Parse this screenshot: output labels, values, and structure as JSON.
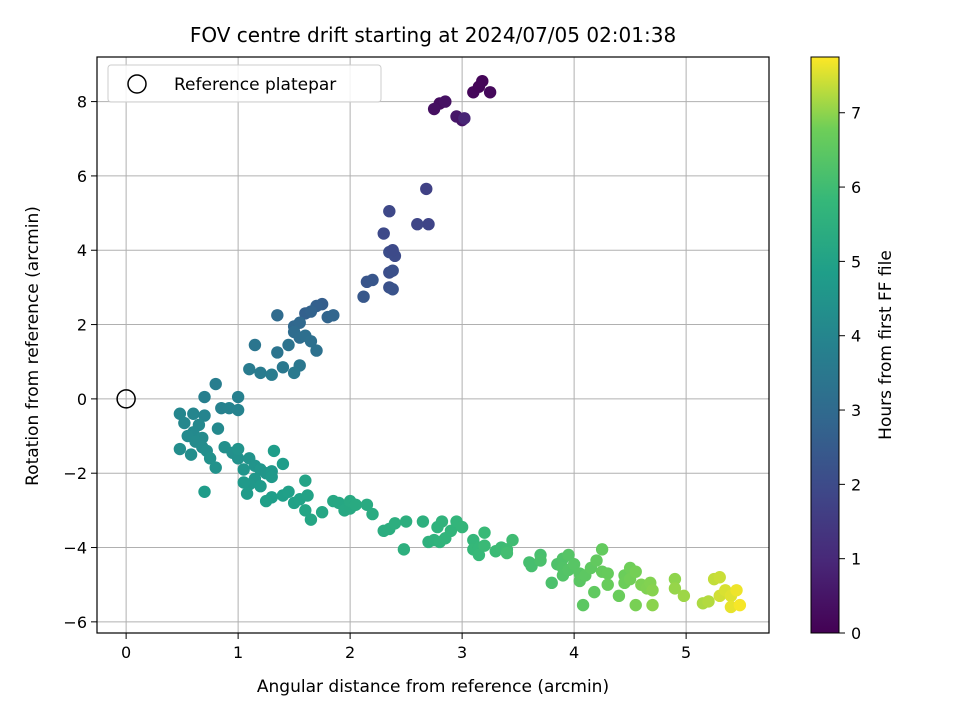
{
  "chart_data": {
    "type": "scatter",
    "title": "FOV centre drift starting at 2024/07/05 02:01:38",
    "xlabel": "Angular distance from reference (arcmin)",
    "ylabel": "Rotation from reference (arcmin)",
    "xlim": [
      -0.26,
      5.74
    ],
    "ylim": [
      -6.3,
      9.2
    ],
    "xticks": [
      0,
      1,
      2,
      3,
      4,
      5
    ],
    "yticks": [
      -6,
      -4,
      -2,
      0,
      2,
      4,
      6,
      8
    ],
    "grid": true,
    "legend": {
      "position": "top-left",
      "entries": [
        {
          "label": "Reference platepar",
          "marker": "open-circle"
        }
      ]
    },
    "reference_point": {
      "x": 0,
      "y": 0
    },
    "colorbar": {
      "label": "Hours from first FF file",
      "colormap": "viridis",
      "range": [
        0,
        7.75
      ],
      "ticks": [
        0,
        1,
        2,
        3,
        4,
        5,
        6,
        7
      ]
    },
    "points": [
      [
        3.18,
        8.55,
        0.1
      ],
      [
        3.1,
        8.25,
        0.15
      ],
      [
        3.25,
        8.25,
        0.2
      ],
      [
        3.15,
        8.4,
        0.12
      ],
      [
        2.8,
        7.95,
        0.3
      ],
      [
        2.75,
        7.8,
        0.35
      ],
      [
        2.85,
        8.0,
        0.4
      ],
      [
        2.95,
        7.6,
        0.55
      ],
      [
        3.0,
        7.5,
        0.5
      ],
      [
        3.02,
        7.55,
        0.9
      ],
      [
        2.68,
        5.65,
        1.7
      ],
      [
        2.7,
        4.7,
        1.8
      ],
      [
        2.6,
        4.7,
        1.85
      ],
      [
        2.35,
        5.05,
        1.9
      ],
      [
        2.3,
        4.45,
        1.95
      ],
      [
        2.4,
        3.85,
        2.0
      ],
      [
        2.35,
        3.95,
        2.05
      ],
      [
        2.38,
        4.0,
        1.98
      ],
      [
        2.35,
        3.4,
        2.1
      ],
      [
        2.38,
        3.45,
        2.15
      ],
      [
        2.35,
        3.0,
        2.2
      ],
      [
        2.38,
        2.95,
        2.25
      ],
      [
        2.15,
        3.15,
        2.3
      ],
      [
        2.2,
        3.2,
        2.35
      ],
      [
        2.12,
        2.75,
        2.4
      ],
      [
        1.75,
        2.55,
        2.6
      ],
      [
        1.7,
        2.5,
        2.65
      ],
      [
        1.6,
        2.3,
        2.7
      ],
      [
        1.65,
        2.35,
        2.75
      ],
      [
        1.8,
        2.2,
        2.8
      ],
      [
        1.85,
        2.25,
        2.85
      ],
      [
        1.5,
        1.95,
        2.9
      ],
      [
        1.55,
        2.05,
        2.95
      ],
      [
        1.35,
        2.25,
        3.0
      ],
      [
        1.5,
        1.8,
        3.05
      ],
      [
        1.55,
        1.65,
        3.1
      ],
      [
        1.6,
        1.7,
        3.15
      ],
      [
        1.65,
        1.55,
        3.2
      ],
      [
        1.7,
        1.3,
        3.25
      ],
      [
        1.45,
        1.45,
        3.3
      ],
      [
        1.35,
        1.25,
        3.35
      ],
      [
        1.15,
        1.45,
        3.4
      ],
      [
        1.55,
        0.9,
        3.45
      ],
      [
        1.4,
        0.85,
        3.5
      ],
      [
        1.5,
        0.7,
        3.55
      ],
      [
        1.1,
        0.8,
        3.6
      ],
      [
        1.2,
        0.7,
        3.62
      ],
      [
        1.3,
        0.65,
        3.65
      ],
      [
        0.8,
        0.4,
        3.7
      ],
      [
        0.7,
        0.05,
        3.75
      ],
      [
        1.0,
        0.05,
        3.8
      ],
      [
        0.85,
        -0.25,
        3.85
      ],
      [
        0.92,
        -0.25,
        3.88
      ],
      [
        1.0,
        -0.3,
        3.9
      ],
      [
        0.7,
        -0.45,
        3.95
      ],
      [
        0.6,
        -0.4,
        3.98
      ],
      [
        0.48,
        -0.4,
        4.0
      ],
      [
        0.52,
        -0.65,
        4.05
      ],
      [
        0.65,
        -0.7,
        4.08
      ],
      [
        0.6,
        -0.9,
        4.1
      ],
      [
        0.82,
        -0.8,
        4.12
      ],
      [
        0.55,
        -1.0,
        4.15
      ],
      [
        0.68,
        -1.05,
        4.18
      ],
      [
        0.62,
        -1.15,
        4.2
      ],
      [
        0.68,
        -1.3,
        4.22
      ],
      [
        0.48,
        -1.35,
        4.25
      ],
      [
        0.58,
        -1.5,
        4.28
      ],
      [
        0.72,
        -1.4,
        4.3
      ],
      [
        0.88,
        -1.3,
        4.33
      ],
      [
        0.95,
        -1.45,
        4.35
      ],
      [
        1.0,
        -1.6,
        4.38
      ],
      [
        0.75,
        -1.6,
        4.4
      ],
      [
        0.8,
        -1.85,
        4.42
      ],
      [
        1.0,
        -1.35,
        4.45
      ],
      [
        1.1,
        -1.6,
        4.48
      ],
      [
        1.15,
        -1.8,
        4.5
      ],
      [
        1.05,
        -1.9,
        4.52
      ],
      [
        1.2,
        -1.9,
        4.55
      ],
      [
        1.25,
        -2.0,
        4.58
      ],
      [
        1.15,
        -2.15,
        4.6
      ],
      [
        1.1,
        -2.3,
        4.62
      ],
      [
        1.3,
        -1.95,
        4.65
      ],
      [
        1.3,
        -2.1,
        4.68
      ],
      [
        1.2,
        -2.35,
        4.7
      ],
      [
        1.05,
        -2.25,
        4.72
      ],
      [
        1.08,
        -2.55,
        4.75
      ],
      [
        0.7,
        -2.5,
        4.78
      ],
      [
        1.32,
        -1.4,
        4.8
      ],
      [
        1.4,
        -1.75,
        4.82
      ],
      [
        1.3,
        -2.65,
        4.85
      ],
      [
        1.25,
        -2.75,
        4.88
      ],
      [
        1.4,
        -2.6,
        4.9
      ],
      [
        1.45,
        -2.5,
        4.92
      ],
      [
        1.5,
        -2.8,
        4.95
      ],
      [
        1.55,
        -2.7,
        4.98
      ],
      [
        1.62,
        -2.6,
        5.0
      ],
      [
        1.6,
        -2.2,
        5.05
      ],
      [
        1.6,
        -3.0,
        5.1
      ],
      [
        1.65,
        -3.25,
        5.12
      ],
      [
        1.75,
        -3.05,
        5.15
      ],
      [
        1.85,
        -2.75,
        5.18
      ],
      [
        1.9,
        -2.8,
        5.2
      ],
      [
        1.95,
        -3.0,
        5.22
      ],
      [
        2.0,
        -2.95,
        5.25
      ],
      [
        2.0,
        -2.75,
        5.28
      ],
      [
        2.05,
        -2.85,
        5.3
      ],
      [
        2.15,
        -2.85,
        5.32
      ],
      [
        2.2,
        -3.1,
        5.35
      ],
      [
        2.3,
        -3.55,
        5.4
      ],
      [
        2.35,
        -3.5,
        5.42
      ],
      [
        2.4,
        -3.35,
        5.45
      ],
      [
        2.5,
        -3.3,
        5.48
      ],
      [
        2.48,
        -4.05,
        5.5
      ],
      [
        2.65,
        -3.3,
        5.52
      ],
      [
        2.7,
        -3.85,
        5.55
      ],
      [
        2.75,
        -3.8,
        5.58
      ],
      [
        2.78,
        -3.45,
        5.6
      ],
      [
        2.82,
        -3.3,
        5.62
      ],
      [
        2.8,
        -3.85,
        5.65
      ],
      [
        2.85,
        -3.75,
        5.68
      ],
      [
        2.9,
        -3.55,
        5.7
      ],
      [
        2.95,
        -3.3,
        5.72
      ],
      [
        3.0,
        -3.45,
        5.75
      ],
      [
        3.1,
        -3.8,
        5.78
      ],
      [
        3.1,
        -4.05,
        5.8
      ],
      [
        3.15,
        -4.0,
        5.82
      ],
      [
        3.15,
        -4.2,
        5.85
      ],
      [
        3.2,
        -3.6,
        5.88
      ],
      [
        3.2,
        -3.95,
        5.9
      ],
      [
        3.3,
        -4.1,
        5.92
      ],
      [
        3.35,
        -4.0,
        5.95
      ],
      [
        3.4,
        -4.05,
        5.98
      ],
      [
        3.45,
        -3.8,
        6.0
      ],
      [
        3.4,
        -4.15,
        6.05
      ],
      [
        3.6,
        -4.4,
        6.1
      ],
      [
        3.62,
        -4.5,
        6.12
      ],
      [
        3.7,
        -4.2,
        6.15
      ],
      [
        3.7,
        -4.35,
        6.18
      ],
      [
        3.8,
        -4.95,
        6.2
      ],
      [
        3.85,
        -4.45,
        6.25
      ],
      [
        3.9,
        -4.3,
        6.28
      ],
      [
        3.9,
        -4.55,
        6.3
      ],
      [
        3.9,
        -4.75,
        6.32
      ],
      [
        3.95,
        -4.6,
        6.35
      ],
      [
        3.95,
        -4.2,
        6.38
      ],
      [
        4.0,
        -4.45,
        6.4
      ],
      [
        4.05,
        -4.7,
        6.42
      ],
      [
        4.05,
        -4.9,
        6.45
      ],
      [
        4.08,
        -5.55,
        6.48
      ],
      [
        4.1,
        -4.75,
        6.5
      ],
      [
        4.15,
        -4.55,
        6.52
      ],
      [
        4.18,
        -5.2,
        6.55
      ],
      [
        4.2,
        -4.35,
        6.58
      ],
      [
        4.25,
        -4.05,
        6.6
      ],
      [
        4.25,
        -4.65,
        6.62
      ],
      [
        4.3,
        -4.7,
        6.65
      ],
      [
        4.3,
        -5.0,
        6.68
      ],
      [
        4.4,
        -5.3,
        6.7
      ],
      [
        4.45,
        -4.75,
        6.72
      ],
      [
        4.45,
        -4.95,
        6.75
      ],
      [
        4.5,
        -4.55,
        6.78
      ],
      [
        4.5,
        -4.85,
        6.8
      ],
      [
        4.55,
        -4.65,
        6.82
      ],
      [
        4.55,
        -5.55,
        6.85
      ],
      [
        4.6,
        -5.0,
        6.88
      ],
      [
        4.65,
        -5.1,
        6.9
      ],
      [
        4.68,
        -4.95,
        6.92
      ],
      [
        4.7,
        -5.15,
        6.95
      ],
      [
        4.7,
        -5.55,
        6.98
      ],
      [
        4.9,
        -4.85,
        7.0
      ],
      [
        4.9,
        -5.1,
        7.05
      ],
      [
        4.98,
        -5.3,
        7.1
      ],
      [
        5.15,
        -5.5,
        7.2
      ],
      [
        5.2,
        -5.45,
        7.25
      ],
      [
        5.25,
        -4.85,
        7.35
      ],
      [
        5.3,
        -4.8,
        7.4
      ],
      [
        5.3,
        -5.3,
        7.45
      ],
      [
        5.35,
        -5.15,
        7.5
      ],
      [
        5.4,
        -5.3,
        7.55
      ],
      [
        5.4,
        -5.6,
        7.6
      ],
      [
        5.45,
        -5.15,
        7.65
      ],
      [
        5.48,
        -5.55,
        7.7
      ]
    ]
  }
}
